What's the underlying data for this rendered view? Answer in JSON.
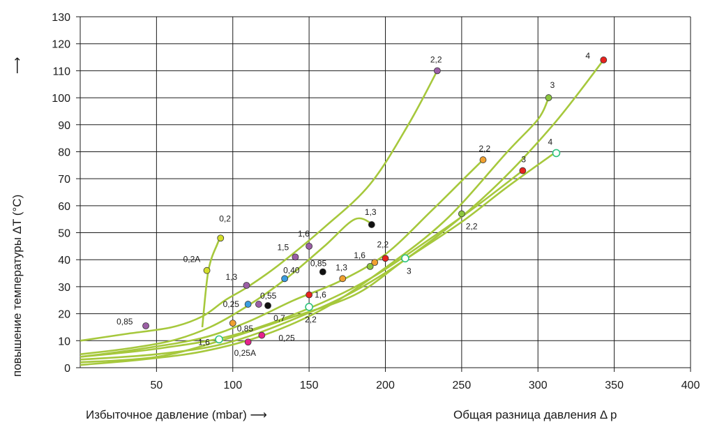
{
  "chart_data": {
    "type": "scatter",
    "xlabel": "Избыточное давление (mbar) ⟶",
    "xlabel_right": "Общая разница давления Δ p",
    "ylabel": "повышение температуры  ΔT (°C)",
    "ylabel_arrow": "⟶",
    "xlim": [
      0,
      400
    ],
    "ylim": [
      0,
      130
    ],
    "x_ticks": [
      50,
      100,
      150,
      200,
      250,
      300,
      350,
      400
    ],
    "y_ticks": [
      0,
      10,
      20,
      30,
      40,
      50,
      60,
      70,
      80,
      90,
      100,
      110,
      120,
      130
    ],
    "grid": true,
    "line_color": "#a6c83c",
    "curves": [
      {
        "points": [
          [
            0,
            10
          ],
          [
            30,
            12.5
          ],
          [
            60,
            15
          ],
          [
            80,
            19
          ],
          [
            95,
            25
          ],
          [
            110,
            30
          ],
          [
            130,
            38
          ],
          [
            160,
            52
          ],
          [
            190,
            68
          ],
          [
            215,
            90
          ],
          [
            234,
            110
          ]
        ]
      },
      {
        "points": [
          [
            0,
            5
          ],
          [
            30,
            7
          ],
          [
            60,
            10
          ],
          [
            85,
            15
          ],
          [
            110,
            23
          ],
          [
            135,
            33
          ],
          [
            160,
            45
          ],
          [
            180,
            55
          ],
          [
            192,
            53
          ]
        ]
      },
      {
        "points": [
          [
            0,
            4
          ],
          [
            40,
            7
          ],
          [
            80,
            11
          ],
          [
            110,
            17
          ],
          [
            140,
            25
          ],
          [
            170,
            32
          ],
          [
            200,
            42
          ],
          [
            230,
            58
          ],
          [
            255,
            72
          ],
          [
            264,
            77
          ]
        ]
      },
      {
        "points": [
          [
            0,
            1
          ],
          [
            40,
            3
          ],
          [
            80,
            6
          ],
          [
            120,
            12
          ],
          [
            160,
            22
          ],
          [
            200,
            37
          ],
          [
            240,
            55
          ],
          [
            280,
            80
          ],
          [
            300,
            92
          ],
          [
            307,
            100
          ]
        ]
      },
      {
        "points": [
          [
            0,
            4
          ],
          [
            50,
            7
          ],
          [
            100,
            12
          ],
          [
            150,
            22
          ],
          [
            190,
            33
          ],
          [
            230,
            48
          ],
          [
            260,
            60
          ],
          [
            290,
            73
          ]
        ]
      },
      {
        "points": [
          [
            0,
            3
          ],
          [
            50,
            5
          ],
          [
            95,
            9
          ],
          [
            140,
            18
          ],
          [
            185,
            30
          ],
          [
            230,
            47
          ],
          [
            270,
            66
          ],
          [
            310,
            90
          ],
          [
            343,
            114
          ]
        ]
      },
      {
        "points": [
          [
            0,
            2
          ],
          [
            50,
            4
          ],
          [
            92,
            10
          ],
          [
            135,
            18
          ],
          [
            180,
            27
          ],
          [
            213,
            40
          ],
          [
            250,
            54
          ],
          [
            280,
            67
          ],
          [
            312,
            80
          ]
        ]
      },
      {
        "points": [
          [
            80,
            15
          ],
          [
            84,
            36
          ],
          [
            90,
            46
          ],
          [
            92,
            48
          ]
        ]
      }
    ],
    "points": [
      {
        "x": 43,
        "y": 15.5,
        "color": "#9b5fa5",
        "label": "0,85",
        "lx": -42,
        "ly": -2
      },
      {
        "x": 92,
        "y": 48,
        "color": "#d4de2a",
        "label": "0,2",
        "lx": -2,
        "ly": -24
      },
      {
        "x": 83,
        "y": 36,
        "color": "#d4de2a",
        "label": "0,2A",
        "lx": -34,
        "ly": -12
      },
      {
        "x": 109,
        "y": 30.5,
        "color": "#9b5fa5",
        "label": "1,3",
        "lx": -30,
        "ly": -8
      },
      {
        "x": 141,
        "y": 41,
        "color": "#9b5fa5",
        "label": "1,5",
        "lx": -26,
        "ly": -10
      },
      {
        "x": 150,
        "y": 45,
        "color": "#9b5fa5",
        "label": "1,6",
        "lx": -16,
        "ly": -14
      },
      {
        "x": 234,
        "y": 110,
        "color": "#9b5fa5",
        "label": "2,2",
        "lx": -10,
        "ly": -12
      },
      {
        "x": 110,
        "y": 23.5,
        "color": "#3a9ee0",
        "label": "0,25",
        "lx": -36,
        "ly": 4
      },
      {
        "x": 134,
        "y": 33,
        "color": "#3a9ee0",
        "label": "0,40",
        "lx": -2,
        "ly": -8
      },
      {
        "x": 117,
        "y": 23.5,
        "color": "#9b5fa5",
        "label": "0,55",
        "lx": 2,
        "ly": -8
      },
      {
        "x": 123,
        "y": 23,
        "color": "#111111",
        "label": "0,7",
        "lx": 8,
        "ly": 22
      },
      {
        "x": 159,
        "y": 35.5,
        "color": "#111111",
        "label": "0,85",
        "lx": -18,
        "ly": -8
      },
      {
        "x": 191,
        "y": 53,
        "color": "#111111",
        "label": "1,3",
        "lx": -10,
        "ly": -14
      },
      {
        "x": 100,
        "y": 16.5,
        "color": "#f0a030",
        "label": "0,85",
        "lx": 6,
        "ly": 12
      },
      {
        "x": 172,
        "y": 33,
        "color": "#f0a030",
        "label": "1,3",
        "lx": -10,
        "ly": -12
      },
      {
        "x": 193,
        "y": 39,
        "color": "#f0a030",
        "label": "1,6",
        "lx": -30,
        "ly": -6
      },
      {
        "x": 264,
        "y": 77,
        "color": "#f0a030",
        "label": "2,2",
        "lx": -6,
        "ly": -12
      },
      {
        "x": 150,
        "y": 27,
        "color": "#e8231e",
        "label": "1,6",
        "lx": 8,
        "ly": 4
      },
      {
        "x": 200,
        "y": 40.5,
        "color": "#e8231e",
        "label": "2,2",
        "lx": -12,
        "ly": -16
      },
      {
        "x": 290,
        "y": 73,
        "color": "#e8231e",
        "label": "3",
        "lx": -2,
        "ly": -12
      },
      {
        "x": 343,
        "y": 114,
        "color": "#e8231e",
        "label": "4",
        "lx": -26,
        "ly": -2
      },
      {
        "x": 190,
        "y": 37.5,
        "color": "#8cc63f",
        "label": "",
        "lx": 0,
        "ly": 0
      },
      {
        "x": 250,
        "y": 57,
        "color": "#8cc63f",
        "label": "2,2",
        "lx": 6,
        "ly": 22
      },
      {
        "x": 307,
        "y": 100,
        "color": "#8cc63f",
        "label": "3",
        "lx": 2,
        "ly": -14
      },
      {
        "x": 91,
        "y": 10.5,
        "color": "#ffffff",
        "stroke": "#2ec27e",
        "label": "1,6",
        "lx": -30,
        "ly": 8
      },
      {
        "x": 150,
        "y": 22.5,
        "color": "#ffffff",
        "stroke": "#2ec27e",
        "label": "2,2",
        "lx": -6,
        "ly": 22
      },
      {
        "x": 213,
        "y": 40.5,
        "color": "#ffffff",
        "stroke": "#2ec27e",
        "label": "3",
        "lx": 2,
        "ly": 22
      },
      {
        "x": 312,
        "y": 79.5,
        "color": "#ffffff",
        "stroke": "#2ec27e",
        "label": "4",
        "lx": -12,
        "ly": -12
      },
      {
        "x": 110,
        "y": 9.5,
        "color": "#e5238c",
        "label": "0,25A",
        "lx": -20,
        "ly": 20
      },
      {
        "x": 119,
        "y": 12,
        "color": "#e5238c",
        "label": "0,25",
        "lx": 24,
        "ly": 8
      }
    ]
  }
}
